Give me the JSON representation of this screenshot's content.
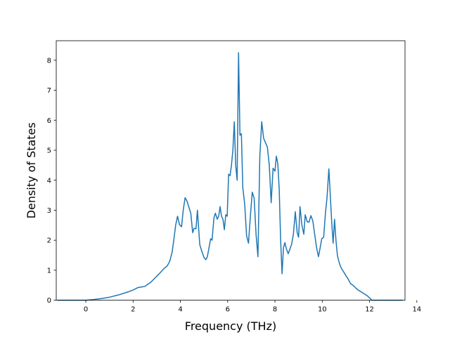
{
  "chart_data": {
    "type": "line",
    "title": "",
    "xlabel": "Frequency (THz)",
    "ylabel": "Density of States",
    "xlim": [
      -1.25,
      13.5
    ],
    "ylim": [
      0,
      8.65
    ],
    "xticks": [
      0,
      2,
      4,
      6,
      8,
      10,
      12,
      14
    ],
    "yticks": [
      0,
      1,
      2,
      3,
      4,
      5,
      6,
      7,
      8
    ],
    "grid": false,
    "legend": "none",
    "series": [
      {
        "color": "#1f77b4",
        "x": [
          -1.2,
          -0.5,
          0,
          0.3,
          0.6,
          1.0,
          1.4,
          1.8,
          2.0,
          2.2,
          2.35,
          2.5,
          2.6,
          2.75,
          2.9,
          3.0,
          3.15,
          3.3,
          3.45,
          3.55,
          3.65,
          3.72,
          3.8,
          3.88,
          3.96,
          4.05,
          4.12,
          4.2,
          4.28,
          4.36,
          4.44,
          4.52,
          4.58,
          4.66,
          4.72,
          4.82,
          4.92,
          5.0,
          5.08,
          5.14,
          5.2,
          5.28,
          5.34,
          5.42,
          5.48,
          5.56,
          5.62,
          5.68,
          5.74,
          5.8,
          5.86,
          5.92,
          5.98,
          6.04,
          6.1,
          6.16,
          6.22,
          6.28,
          6.34,
          6.4,
          6.46,
          6.52,
          6.58,
          6.64,
          6.72,
          6.8,
          6.88,
          6.96,
          7.04,
          7.12,
          7.2,
          7.28,
          7.36,
          7.44,
          7.52,
          7.6,
          7.68,
          7.76,
          7.84,
          7.92,
          8.0,
          8.06,
          8.12,
          8.18,
          8.24,
          8.3,
          8.36,
          8.42,
          8.48,
          8.56,
          8.62,
          8.7,
          8.78,
          8.86,
          8.94,
          9.0,
          9.06,
          9.14,
          9.22,
          9.28,
          9.36,
          9.44,
          9.52,
          9.6,
          9.68,
          9.76,
          9.84,
          9.9,
          9.98,
          10.06,
          10.14,
          10.2,
          10.28,
          10.34,
          10.4,
          10.46,
          10.52,
          10.58,
          10.64,
          10.7,
          10.76,
          10.82,
          10.9,
          11.0,
          11.1,
          11.2,
          11.3,
          11.4,
          11.5,
          11.6,
          11.7,
          11.8,
          11.9,
          12.0,
          12.1,
          12.2,
          12.4,
          12.8,
          13.4
        ],
        "y": [
          0.0,
          0.0,
          0.0,
          0.02,
          0.05,
          0.1,
          0.18,
          0.28,
          0.34,
          0.42,
          0.44,
          0.46,
          0.52,
          0.6,
          0.72,
          0.8,
          0.92,
          1.05,
          1.15,
          1.3,
          1.6,
          2.0,
          2.5,
          2.8,
          2.52,
          2.45,
          3.0,
          3.42,
          3.3,
          3.1,
          2.9,
          2.25,
          2.4,
          2.38,
          3.0,
          1.85,
          1.6,
          1.42,
          1.35,
          1.45,
          1.7,
          2.05,
          2.0,
          2.75,
          2.9,
          2.7,
          2.8,
          3.12,
          2.8,
          2.7,
          2.35,
          2.85,
          2.8,
          4.2,
          4.15,
          4.5,
          5.0,
          5.95,
          4.5,
          4.0,
          8.25,
          5.5,
          5.55,
          3.75,
          3.2,
          2.15,
          1.9,
          2.8,
          3.6,
          3.4,
          2.2,
          1.45,
          4.8,
          5.95,
          5.4,
          5.25,
          5.1,
          4.5,
          3.25,
          4.4,
          4.3,
          4.8,
          4.55,
          3.7,
          2.0,
          0.88,
          1.75,
          1.92,
          1.72,
          1.55,
          1.68,
          1.85,
          2.2,
          2.95,
          2.25,
          2.1,
          3.12,
          2.5,
          2.2,
          2.85,
          2.62,
          2.6,
          2.82,
          2.65,
          2.2,
          1.75,
          1.45,
          1.7,
          2.05,
          2.1,
          2.95,
          3.4,
          4.38,
          3.5,
          2.6,
          1.9,
          2.7,
          2.0,
          1.5,
          1.3,
          1.15,
          1.05,
          0.95,
          0.82,
          0.7,
          0.55,
          0.5,
          0.42,
          0.35,
          0.3,
          0.25,
          0.2,
          0.15,
          0.08,
          0.0,
          0.0,
          0.0,
          0.0,
          0.0
        ]
      }
    ]
  }
}
